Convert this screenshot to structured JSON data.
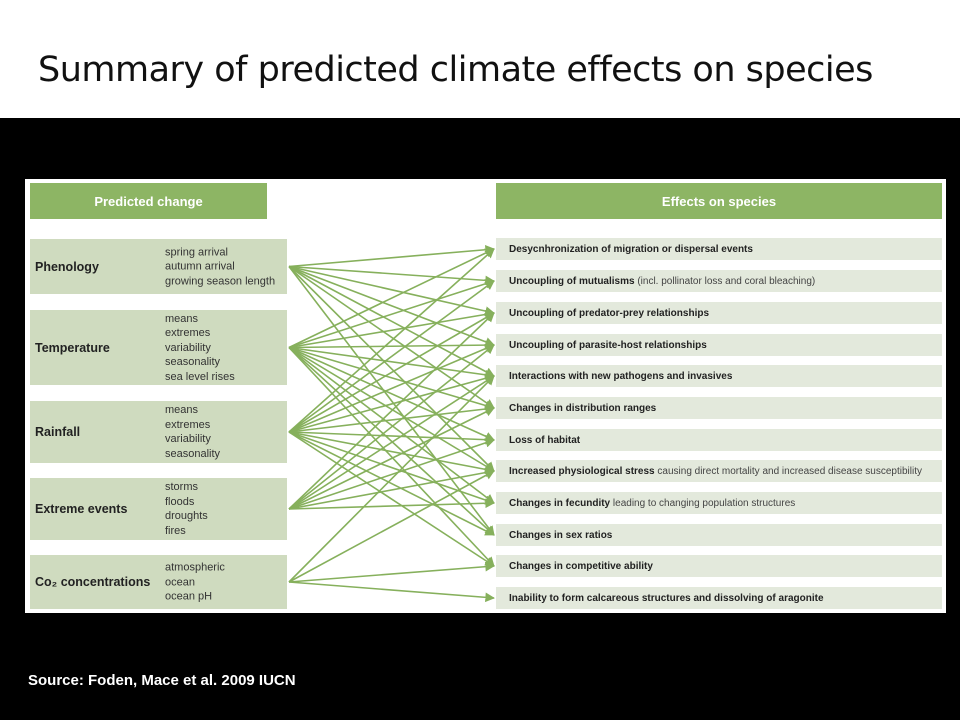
{
  "title": "Summary of predicted climate effects on species",
  "headers": {
    "left": "Predicted change",
    "right": "Effects on species"
  },
  "categories": [
    {
      "label": "Phenology",
      "items": [
        "spring arrival",
        "autumn arrival",
        "growing season length"
      ]
    },
    {
      "label": "Temperature",
      "items": [
        "means",
        "extremes",
        "variability",
        "seasonality",
        "sea level rises"
      ]
    },
    {
      "label": "Rainfall",
      "items": [
        "means",
        "extremes",
        "variability",
        "seasonality"
      ]
    },
    {
      "label": "Extreme events",
      "items": [
        "storms",
        "floods",
        "droughts",
        "fires"
      ]
    },
    {
      "label": "Co₂ concentrations",
      "items": [
        "atmospheric",
        "ocean",
        "ocean pH"
      ]
    }
  ],
  "effects": [
    {
      "bold": "Desycnhronization of migration or dispersal events",
      "normal": ""
    },
    {
      "bold": "Uncoupling of mutualisms",
      "normal": "(incl. pollinator loss and coral bleaching)"
    },
    {
      "bold": "Uncoupling of predator-prey relationships",
      "normal": ""
    },
    {
      "bold": "Uncoupling of parasite-host relationships",
      "normal": ""
    },
    {
      "bold": "Interactions with new pathogens and invasives",
      "normal": ""
    },
    {
      "bold": "Changes in distribution ranges",
      "normal": ""
    },
    {
      "bold": "Loss of habitat",
      "normal": ""
    },
    {
      "bold": "Increased physiological stress",
      "normal": "causing direct mortality and increased disease susceptibility"
    },
    {
      "bold": "Changes in fecundity",
      "normal": "leading to changing population structures"
    },
    {
      "bold": "Changes in sex ratios",
      "normal": ""
    },
    {
      "bold": "Changes in competitive ability",
      "normal": ""
    },
    {
      "bold": "Inability to form calcareous structures and dissolving of aragonite",
      "normal": ""
    }
  ],
  "connections": [
    [
      0,
      1,
      2,
      3,
      4,
      5,
      7,
      9
    ],
    [
      0,
      1,
      2,
      3,
      4,
      5,
      6,
      7,
      8,
      9,
      10
    ],
    [
      0,
      1,
      2,
      3,
      4,
      5,
      6,
      7,
      8,
      9,
      10
    ],
    [
      2,
      3,
      4,
      5,
      6,
      7,
      8
    ],
    [
      4,
      7,
      10,
      11
    ]
  ],
  "colors": {
    "header": "#8db564",
    "box": "#cfdbbf",
    "effect": "#e3e9dc",
    "arrow": "#86b05c"
  },
  "source": "Source: Foden, Mace et al.  2009 IUCN"
}
